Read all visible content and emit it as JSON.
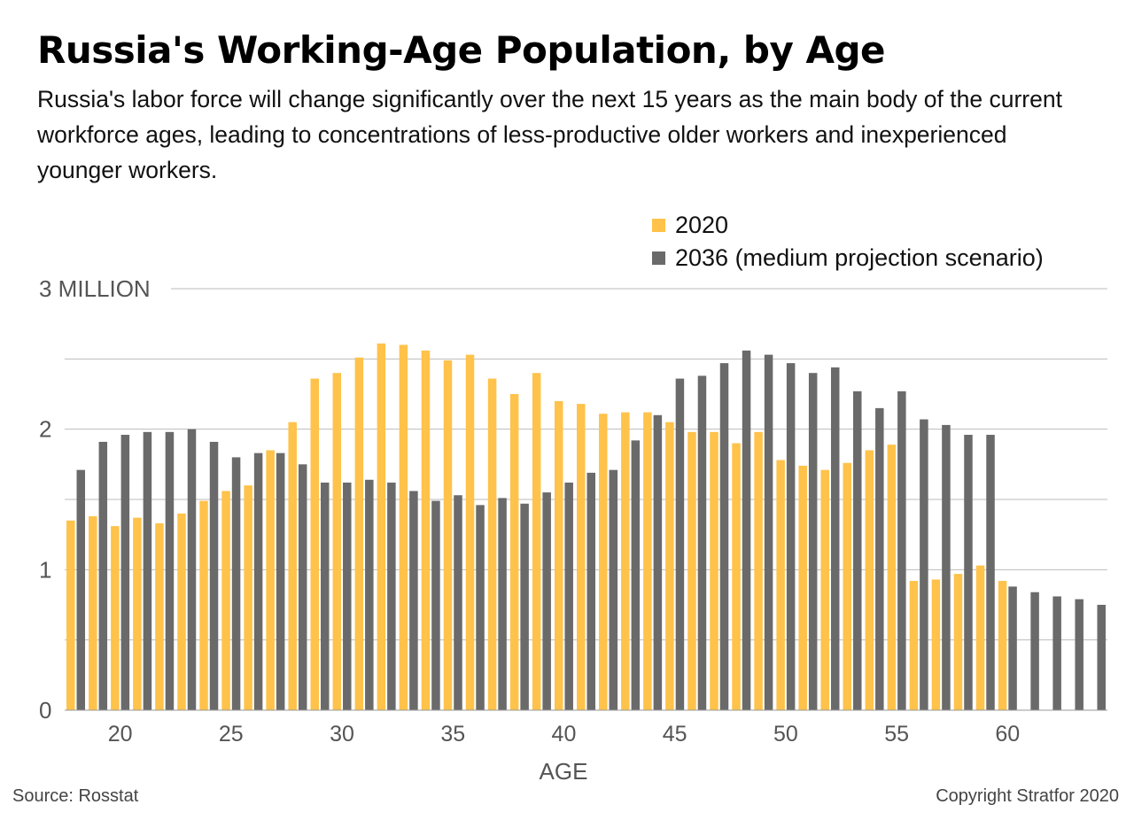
{
  "header": {
    "title": "Russia's Working-Age Population, by Age",
    "subtitle": "Russia's labor force will change significantly over the next 15 years as the main body of the current workforce ages, leading to concentrations of less-productive older workers and inexperienced younger workers."
  },
  "footer": {
    "source": "Source: Rosstat",
    "copyright": "Copyright Stratfor 2020"
  },
  "colors": {
    "series_2020": "#FFC24A",
    "series_2036": "#6A6A6A",
    "gridline": "#BBBBBB",
    "axis_text": "#555555"
  },
  "chart_data": {
    "type": "bar",
    "xlabel": "AGE",
    "ylabel": "",
    "ylim": [
      0,
      3
    ],
    "y_ticks": [
      {
        "value": 0,
        "label": "0"
      },
      {
        "value": 0.5,
        "label": ""
      },
      {
        "value": 1,
        "label": "1"
      },
      {
        "value": 1.5,
        "label": ""
      },
      {
        "value": 2,
        "label": "2"
      },
      {
        "value": 2.5,
        "label": ""
      },
      {
        "value": 3,
        "label": "3 MILLION"
      }
    ],
    "x_tick_labels": [
      "20",
      "25",
      "30",
      "35",
      "40",
      "45",
      "50",
      "55",
      "60"
    ],
    "grid": true,
    "legend_position": "top-right",
    "categories": [
      18,
      19,
      20,
      21,
      22,
      23,
      24,
      25,
      26,
      27,
      28,
      29,
      30,
      31,
      32,
      33,
      34,
      35,
      36,
      37,
      38,
      39,
      40,
      41,
      42,
      43,
      44,
      45,
      46,
      47,
      48,
      49,
      50,
      51,
      52,
      53,
      54,
      55,
      56,
      57,
      58,
      59,
      60,
      61,
      62,
      63,
      64
    ],
    "series": [
      {
        "name": "2020",
        "values": [
          1.35,
          1.38,
          1.31,
          1.37,
          1.33,
          1.4,
          1.49,
          1.56,
          1.6,
          1.85,
          2.05,
          2.36,
          2.4,
          2.51,
          2.61,
          2.6,
          2.56,
          2.49,
          2.53,
          2.36,
          2.25,
          2.4,
          2.2,
          2.18,
          2.11,
          2.12,
          2.12,
          2.05,
          1.98,
          1.98,
          1.9,
          1.98,
          1.78,
          1.74,
          1.71,
          1.76,
          1.85,
          1.89,
          0.92,
          0.93,
          0.97,
          1.03,
          0.92,
          null,
          null,
          null,
          null
        ]
      },
      {
        "name": "2036 (medium projection scenario)",
        "values": [
          1.71,
          1.91,
          1.96,
          1.98,
          1.98,
          2.0,
          1.91,
          1.8,
          1.83,
          1.83,
          1.75,
          1.62,
          1.62,
          1.64,
          1.62,
          1.56,
          1.49,
          1.53,
          1.46,
          1.51,
          1.47,
          1.55,
          1.62,
          1.69,
          1.71,
          1.92,
          2.1,
          2.36,
          2.38,
          2.47,
          2.56,
          2.53,
          2.47,
          2.4,
          2.44,
          2.27,
          2.15,
          2.27,
          2.07,
          2.03,
          1.96,
          1.96,
          0.88,
          0.84,
          0.81,
          0.79,
          0.75
        ]
      }
    ]
  }
}
